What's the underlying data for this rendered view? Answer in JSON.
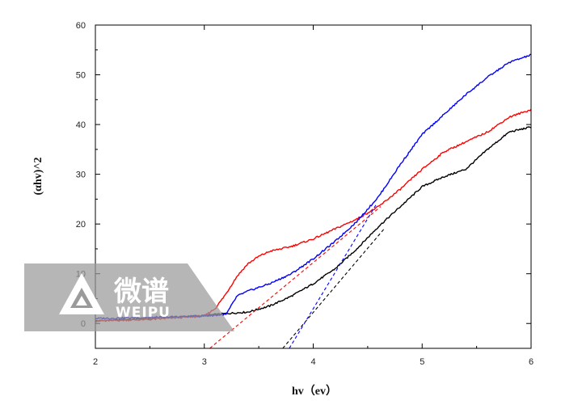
{
  "chart_data": {
    "type": "line",
    "title": "",
    "xlabel": "hv（ev）",
    "ylabel": "(αhv)^2",
    "xlim": [
      2,
      6
    ],
    "ylim": [
      -5,
      60
    ],
    "x_ticks": [
      "2",
      "3",
      "4",
      "5",
      "6"
    ],
    "y_ticks": [
      "0",
      "10",
      "20",
      "30",
      "40",
      "50",
      "60"
    ],
    "grid": false,
    "legend": "none",
    "series": [
      {
        "color": "#000000",
        "style": "solid",
        "x": [
          2.0,
          2.5,
          3.0,
          3.2,
          3.4,
          3.6,
          3.8,
          4.0,
          4.2,
          4.4,
          4.6,
          4.8,
          5.0,
          5.2,
          5.4,
          5.6,
          5.8,
          6.0
        ],
        "y": [
          0.5,
          1.0,
          1.6,
          2.0,
          2.3,
          3.5,
          5.5,
          8.0,
          11.0,
          15.0,
          19.5,
          23.5,
          27.5,
          29.5,
          31.0,
          35.0,
          38.5,
          39.5
        ]
      },
      {
        "color": "#ff0000",
        "style": "solid",
        "x": [
          2.0,
          2.5,
          3.0,
          3.1,
          3.2,
          3.3,
          3.4,
          3.5,
          3.6,
          3.8,
          4.0,
          4.2,
          4.4,
          4.6,
          4.8,
          5.0,
          5.2,
          5.4,
          5.6,
          5.8,
          6.0
        ],
        "y": [
          0.5,
          0.8,
          1.5,
          3.0,
          6.0,
          9.5,
          12.0,
          13.5,
          14.5,
          15.5,
          17.0,
          19.0,
          21.0,
          23.5,
          27.0,
          31.0,
          34.5,
          36.5,
          38.5,
          41.5,
          43.0
        ]
      },
      {
        "color": "#0000ff",
        "style": "solid",
        "x": [
          2.0,
          2.5,
          3.0,
          3.2,
          3.3,
          3.4,
          3.6,
          3.8,
          4.0,
          4.2,
          4.4,
          4.6,
          4.8,
          5.0,
          5.2,
          5.4,
          5.6,
          5.8,
          6.0
        ],
        "y": [
          1.0,
          1.2,
          1.5,
          1.8,
          5.5,
          6.5,
          8.0,
          10.0,
          13.0,
          16.5,
          20.5,
          25.5,
          32.0,
          38.0,
          42.0,
          46.0,
          49.5,
          52.5,
          54.0
        ]
      },
      {
        "color": "#ff0000",
        "style": "dashed",
        "x": [
          3.05,
          4.62
        ],
        "y": [
          -5.0,
          23.5
        ]
      },
      {
        "color": "#000000",
        "style": "dashed",
        "x": [
          3.72,
          4.65
        ],
        "y": [
          -5.0,
          19.0
        ]
      },
      {
        "color": "#0000ff",
        "style": "dashed",
        "x": [
          3.78,
          4.58
        ],
        "y": [
          -5.0,
          24.0
        ]
      }
    ]
  },
  "watermark": {
    "text_cn": "微谱",
    "text_en": "WEIPU"
  }
}
